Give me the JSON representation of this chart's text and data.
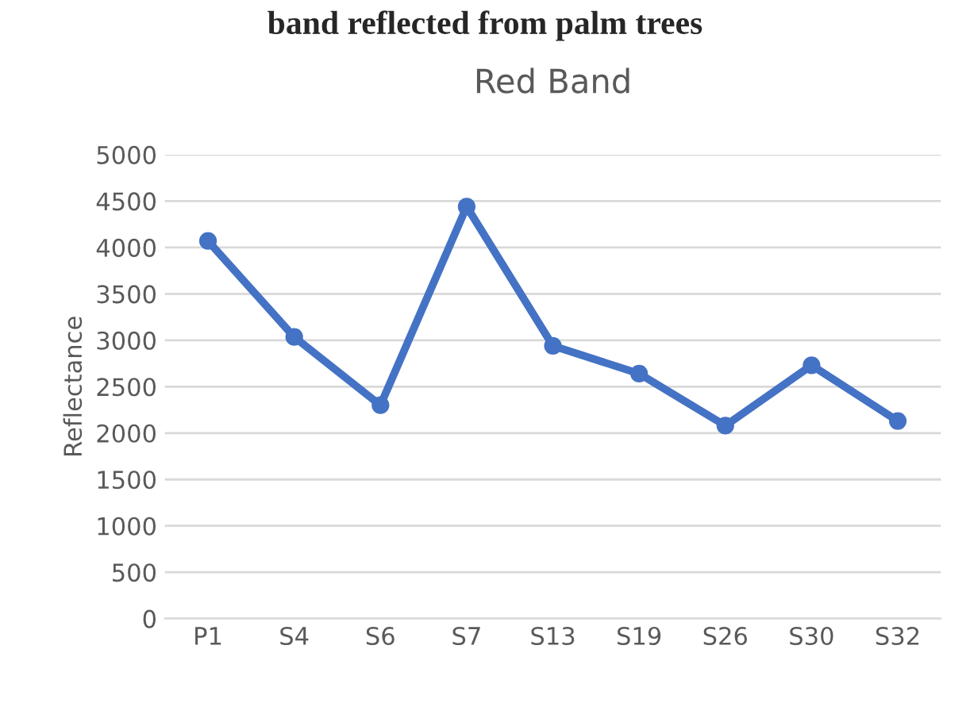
{
  "chart_data": {
    "type": "line",
    "title": "Red Band",
    "ylabel": "Reflectance",
    "annotations": [
      "band reflected from palm trees"
    ],
    "categories": [
      "P1",
      "S4",
      "S6",
      "S7",
      "S13",
      "S19",
      "S26",
      "S30",
      "S32"
    ],
    "series": [
      {
        "color": "#4472c4",
        "values": [
          4070,
          3035,
          2300,
          4440,
          2940,
          2640,
          2080,
          2730,
          2130
        ]
      }
    ],
    "ylim": [
      0,
      5000
    ],
    "yticks": [
      0,
      500,
      1000,
      1500,
      2000,
      2500,
      3000,
      3500,
      4000,
      4500,
      5000
    ],
    "grid": "y",
    "legend": false,
    "marker": "circle",
    "line_style": "solid"
  }
}
